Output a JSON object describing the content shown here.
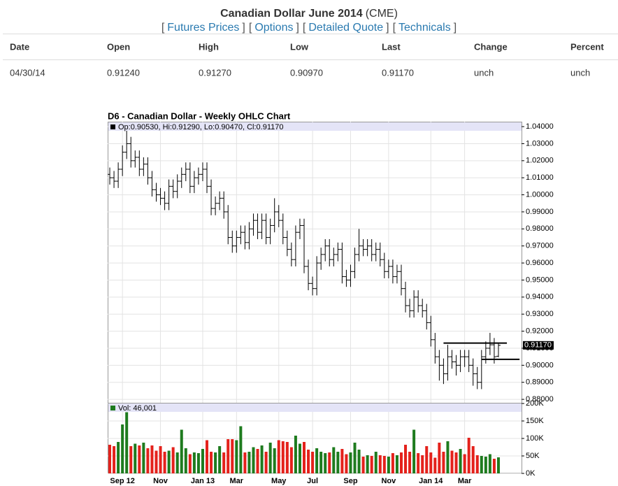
{
  "header": {
    "title": "Canadian Dollar June 2014",
    "exchange": "(CME)"
  },
  "nav": {
    "brackets": [
      "[",
      "]"
    ],
    "links": [
      "Futures Prices",
      "Options",
      "Detailed Quote",
      "Technicals"
    ]
  },
  "table": {
    "columns": [
      "Date",
      "Open",
      "High",
      "Low",
      "Last",
      "Change",
      "Percent"
    ],
    "rows": [
      [
        "04/30/14",
        "0.91240",
        "0.91270",
        "0.90970",
        "0.91170",
        "unch",
        "unch"
      ]
    ]
  },
  "chart_data": {
    "type": "ohlc",
    "title": "D6 - Canadian Dollar - Weekly OHLC Chart",
    "legend": "Op:0.90530, Hi:0.91290, Lo:0.90470, Cl:0.91170",
    "categories": [
      null,
      null,
      null,
      "Sep 12",
      null,
      null,
      null,
      null,
      null,
      null,
      null,
      null,
      "Nov",
      null,
      null,
      null,
      null,
      null,
      null,
      null,
      null,
      null,
      "Jan 13",
      null,
      null,
      null,
      null,
      null,
      null,
      null,
      "Mar",
      null,
      null,
      null,
      null,
      null,
      null,
      null,
      null,
      null,
      "May",
      null,
      null,
      null,
      null,
      null,
      null,
      null,
      "Jul",
      null,
      null,
      null,
      null,
      null,
      null,
      null,
      null,
      "Sep",
      null,
      null,
      null,
      null,
      null,
      null,
      null,
      null,
      "Nov",
      null,
      null,
      null,
      null,
      null,
      null,
      null,
      null,
      null,
      "Jan 14",
      null,
      null,
      null,
      null,
      null,
      null,
      null,
      "Mar",
      null,
      null,
      null,
      null,
      null,
      null,
      null,
      null
    ],
    "open": [
      1.012,
      1.01,
      1.008,
      1.015,
      1.025,
      1.03,
      1.02,
      1.022,
      1.015,
      1.018,
      1.01,
      1.003,
      1.0,
      0.998,
      0.995,
      1.005,
      1.002,
      1.008,
      1.012,
      1.015,
      1.005,
      1.01,
      1.012,
      1.015,
      1.005,
      0.992,
      0.995,
      0.998,
      0.99,
      0.975,
      0.97,
      0.975,
      0.978,
      0.972,
      0.98,
      0.985,
      0.978,
      0.985,
      0.975,
      0.982,
      0.99,
      0.985,
      0.975,
      0.968,
      0.962,
      0.978,
      0.982,
      0.958,
      0.948,
      0.945,
      0.96,
      0.965,
      0.97,
      0.962,
      0.965,
      0.968,
      0.952,
      0.95,
      0.955,
      0.965,
      0.97,
      0.968,
      0.97,
      0.965,
      0.968,
      0.962,
      0.955,
      0.958,
      0.952,
      0.955,
      0.945,
      0.935,
      0.932,
      0.94,
      0.935,
      0.932,
      0.925,
      0.915,
      0.905,
      0.9,
      0.895,
      0.905,
      0.902,
      0.9,
      0.905,
      0.905,
      0.9,
      0.895,
      0.89,
      0.905,
      0.91,
      0.912,
      0.9053
    ],
    "high": [
      1.016,
      1.014,
      1.019,
      1.029,
      1.038,
      1.034,
      1.026,
      1.026,
      1.022,
      1.022,
      1.014,
      1.007,
      1.004,
      1.002,
      1.009,
      1.009,
      1.012,
      1.016,
      1.019,
      1.019,
      1.014,
      1.016,
      1.019,
      1.019,
      1.009,
      0.999,
      1.002,
      1.002,
      0.994,
      0.979,
      0.979,
      0.982,
      0.982,
      0.984,
      0.989,
      0.989,
      0.989,
      0.989,
      0.986,
      0.998,
      0.994,
      0.989,
      0.979,
      0.972,
      0.982,
      0.986,
      0.986,
      0.962,
      0.952,
      0.964,
      0.969,
      0.974,
      0.974,
      0.969,
      0.972,
      0.972,
      0.956,
      0.959,
      0.969,
      0.98,
      0.974,
      0.974,
      0.974,
      0.972,
      0.972,
      0.966,
      0.962,
      0.962,
      0.959,
      0.959,
      0.949,
      0.939,
      0.944,
      0.944,
      0.939,
      0.936,
      0.929,
      0.919,
      0.909,
      0.904,
      0.912,
      0.909,
      0.906,
      0.909,
      0.909,
      0.909,
      0.904,
      0.899,
      0.909,
      0.914,
      0.919,
      0.916,
      0.9129
    ],
    "low": [
      1.006,
      1.004,
      1.004,
      1.011,
      1.021,
      1.016,
      1.016,
      1.011,
      1.011,
      1.006,
      0.999,
      0.996,
      0.994,
      0.991,
      0.991,
      0.998,
      0.998,
      1.004,
      1.008,
      1.001,
      1.001,
      1.006,
      1.008,
      1.001,
      0.988,
      0.988,
      0.991,
      0.986,
      0.971,
      0.966,
      0.966,
      0.971,
      0.968,
      0.968,
      0.976,
      0.974,
      0.974,
      0.971,
      0.971,
      0.978,
      0.981,
      0.971,
      0.964,
      0.958,
      0.958,
      0.974,
      0.954,
      0.944,
      0.941,
      0.941,
      0.956,
      0.961,
      0.958,
      0.958,
      0.961,
      0.948,
      0.946,
      0.946,
      0.951,
      0.961,
      0.964,
      0.964,
      0.961,
      0.961,
      0.958,
      0.951,
      0.951,
      0.948,
      0.948,
      0.941,
      0.931,
      0.928,
      0.928,
      0.931,
      0.928,
      0.921,
      0.911,
      0.901,
      0.891,
      0.889,
      0.891,
      0.898,
      0.894,
      0.896,
      0.899,
      0.896,
      0.888,
      0.886,
      0.886,
      0.901,
      0.906,
      0.901,
      0.9047
    ],
    "close": [
      1.01,
      1.008,
      1.015,
      1.025,
      1.03,
      1.02,
      1.022,
      1.015,
      1.018,
      1.01,
      1.003,
      1.0,
      0.998,
      0.995,
      1.005,
      1.002,
      1.008,
      1.012,
      1.015,
      1.005,
      1.01,
      1.012,
      1.015,
      1.005,
      0.992,
      0.995,
      0.998,
      0.99,
      0.975,
      0.97,
      0.975,
      0.978,
      0.972,
      0.98,
      0.985,
      0.978,
      0.985,
      0.975,
      0.982,
      0.99,
      0.985,
      0.975,
      0.968,
      0.962,
      0.978,
      0.982,
      0.958,
      0.948,
      0.945,
      0.96,
      0.965,
      0.97,
      0.962,
      0.965,
      0.968,
      0.952,
      0.95,
      0.955,
      0.965,
      0.97,
      0.968,
      0.97,
      0.965,
      0.968,
      0.962,
      0.955,
      0.958,
      0.952,
      0.955,
      0.945,
      0.935,
      0.932,
      0.94,
      0.935,
      0.932,
      0.925,
      0.915,
      0.905,
      0.9,
      0.895,
      0.905,
      0.902,
      0.9,
      0.905,
      0.905,
      0.9,
      0.895,
      0.89,
      0.905,
      0.91,
      0.912,
      0.905,
      0.9117
    ],
    "color": "#000000",
    "ylim": [
      0.8784,
      1.0429
    ],
    "yticks": [
      {
        "value": 0.88,
        "label": "0.88000"
      },
      {
        "value": 0.89,
        "label": "0.89000"
      },
      {
        "value": 0.9,
        "label": "0.90000"
      },
      {
        "value": 0.91,
        "label": "0.91000"
      },
      {
        "value": 0.92,
        "label": "0.92000"
      },
      {
        "value": 0.93,
        "label": "0.93000"
      },
      {
        "value": 0.94,
        "label": "0.94000"
      },
      {
        "value": 0.95,
        "label": "0.95000"
      },
      {
        "value": 0.96,
        "label": "0.96000"
      },
      {
        "value": 0.97,
        "label": "0.97000"
      },
      {
        "value": 0.98,
        "label": "0.98000"
      },
      {
        "value": 0.99,
        "label": "0.99000"
      },
      {
        "value": 1.0,
        "label": "1.00000"
      },
      {
        "value": 1.01,
        "label": "1.01000"
      },
      {
        "value": 1.02,
        "label": "1.02000"
      },
      {
        "value": 1.03,
        "label": "1.03000"
      },
      {
        "value": 1.04,
        "label": "1.04000"
      }
    ],
    "last": {
      "value": 0.9117,
      "label": "0.91170"
    },
    "hlines": [
      {
        "value": 0.913,
        "from": 79,
        "to": 94
      },
      {
        "value": 0.9035,
        "from": 88,
        "to": 97
      }
    ],
    "grid": true,
    "volume": {
      "legend": "Vol: 46,001",
      "values": [
        82000,
        78000,
        90000,
        140000,
        175000,
        78000,
        85000,
        80000,
        88000,
        72000,
        80000,
        65000,
        78000,
        62000,
        65000,
        75000,
        60000,
        125000,
        72000,
        55000,
        60000,
        58000,
        70000,
        95000,
        62000,
        60000,
        78000,
        60000,
        98000,
        98000,
        95000,
        135000,
        60000,
        62000,
        75000,
        70000,
        80000,
        62000,
        88000,
        72000,
        95000,
        92000,
        90000,
        75000,
        108000,
        85000,
        90000,
        68000,
        62000,
        72000,
        62000,
        58000,
        60000,
        75000,
        62000,
        70000,
        55000,
        60000,
        88000,
        68000,
        48000,
        52000,
        50000,
        62000,
        52000,
        50000,
        48000,
        58000,
        52000,
        60000,
        82000,
        62000,
        125000,
        58000,
        52000,
        78000,
        60000,
        45000,
        88000,
        62000,
        92000,
        65000,
        60000,
        70000,
        55000,
        102000,
        78000,
        52000,
        50000,
        48000,
        55000,
        42000,
        46001
      ],
      "up_color": "#1e7b1e",
      "down_color": "#e4211b",
      "ylim": [
        0,
        200000
      ],
      "yticks": [
        {
          "value": 0,
          "label": "0K"
        },
        {
          "value": 50000,
          "label": "50K"
        },
        {
          "value": 100000,
          "label": "100K"
        },
        {
          "value": 150000,
          "label": "150K"
        },
        {
          "value": 200000,
          "label": "200K"
        }
      ]
    }
  }
}
